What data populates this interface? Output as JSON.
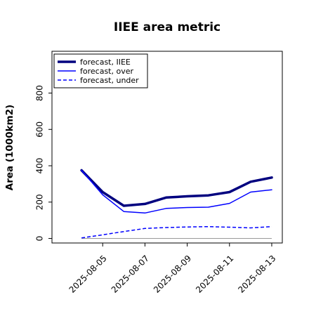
{
  "chart_data": {
    "type": "line",
    "title": "IIEE area metric",
    "xlabel": "",
    "ylabel": "Area (1000km2)",
    "x_tick_labels": [
      "2025-08-05",
      "2025-08-07",
      "2025-08-09",
      "2025-08-11",
      "2025-08-13"
    ],
    "x_tick_days": [
      5,
      7,
      9,
      11,
      13
    ],
    "highlight_tick_color": "#008000",
    "x": [
      4,
      5,
      6,
      7,
      8,
      9,
      10,
      11,
      12,
      13
    ],
    "xlim": [
      2.6,
      13.5
    ],
    "ylim": [
      -25,
      1030
    ],
    "yticks": [
      0,
      200,
      400,
      600,
      800
    ],
    "legend_position": "top-left",
    "grid": false,
    "series": [
      {
        "name": "forecast, IIEE",
        "color": "#00007f",
        "style": "solid",
        "width": "thick",
        "values": [
          375,
          255,
          180,
          190,
          225,
          232,
          237,
          255,
          312,
          335
        ]
      },
      {
        "name": "forecast, over",
        "color": "#0000ff",
        "style": "solid",
        "width": "normal",
        "values": [
          375,
          240,
          148,
          140,
          165,
          170,
          172,
          193,
          255,
          268
        ]
      },
      {
        "name": "forecast, under",
        "color": "#0000ff",
        "style": "dashed",
        "width": "normal",
        "values": [
          3,
          20,
          38,
          55,
          60,
          63,
          65,
          62,
          58,
          65
        ]
      }
    ],
    "reference_line": {
      "value": 0,
      "color": "#999999"
    }
  }
}
